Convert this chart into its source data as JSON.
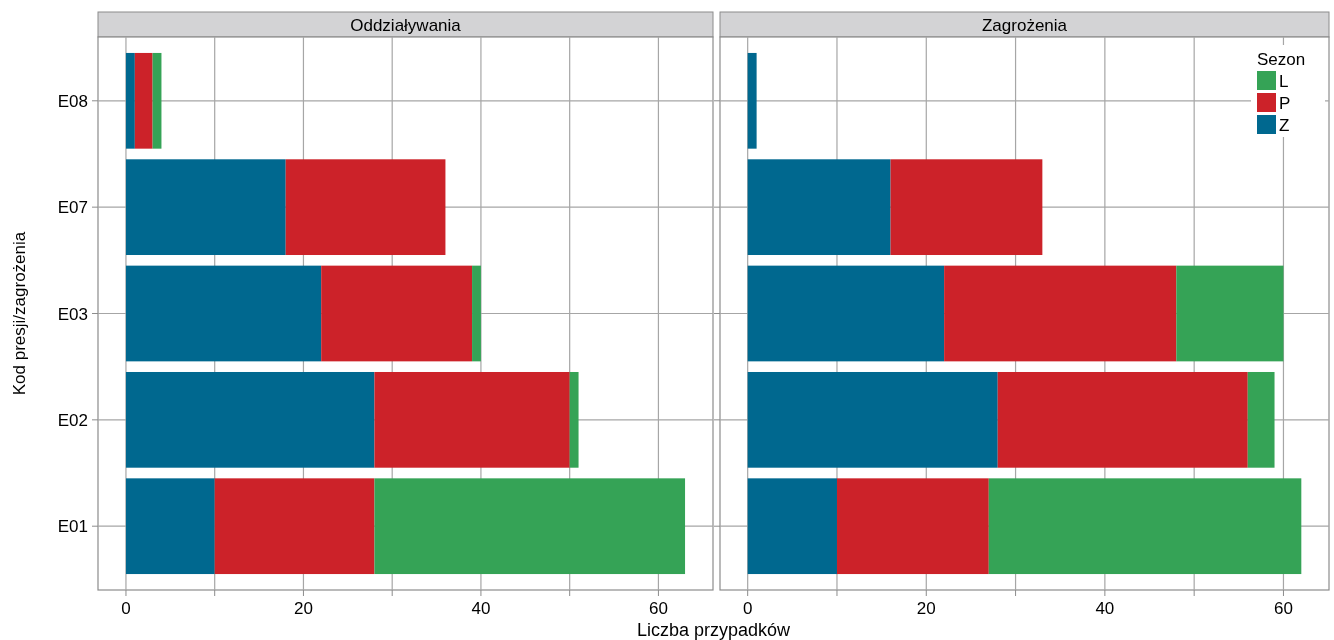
{
  "chart_data": [
    {
      "type": "bar",
      "orientation": "horizontal",
      "stacked": true,
      "title": "Oddziaływania",
      "xlabel": "Liczba przypadków",
      "ylabel": "Kod presji/zagrożenia",
      "categories": [
        "E08",
        "E07",
        "E03",
        "E02",
        "E01"
      ],
      "series": [
        {
          "color": "#00688f",
          "values": [
            1,
            18,
            22,
            28,
            10
          ]
        },
        {
          "color": "#cc2229",
          "values": [
            2,
            18,
            17,
            22,
            18
          ]
        },
        {
          "color": "#35a356",
          "values": [
            1,
            0,
            1,
            1,
            35
          ]
        }
      ],
      "xlim": [
        -3.15,
        66.15
      ],
      "xticks": [
        0,
        {
          "value": 10,
          "label": null
        },
        20,
        {
          "value": 30,
          "label": null
        },
        40,
        {
          "value": 50,
          "label": null
        },
        60
      ],
      "grid": true,
      "legend": false
    },
    {
      "type": "bar",
      "orientation": "horizontal",
      "stacked": true,
      "title": "Zagrożenia",
      "legend_title": "Sezon",
      "categories": [
        null,
        null,
        null,
        null,
        null
      ],
      "series": [
        {
          "name": "Z",
          "color": "#00688f",
          "values": [
            1,
            16,
            22,
            28,
            10
          ]
        },
        {
          "name": "P",
          "color": "#cc2229",
          "values": [
            0,
            17,
            26,
            28,
            17
          ]
        },
        {
          "name": "L",
          "color": "#35a356",
          "values": [
            0,
            0,
            12,
            3,
            35
          ]
        }
      ],
      "xlim": [
        -3.1,
        65.1
      ],
      "xticks": [
        0,
        {
          "value": 10,
          "label": null
        },
        20,
        {
          "value": 30,
          "label": null
        },
        40,
        {
          "value": 50,
          "label": null
        },
        60
      ],
      "grid": true,
      "legend": "top right",
      "tick_labels": "x"
    }
  ]
}
